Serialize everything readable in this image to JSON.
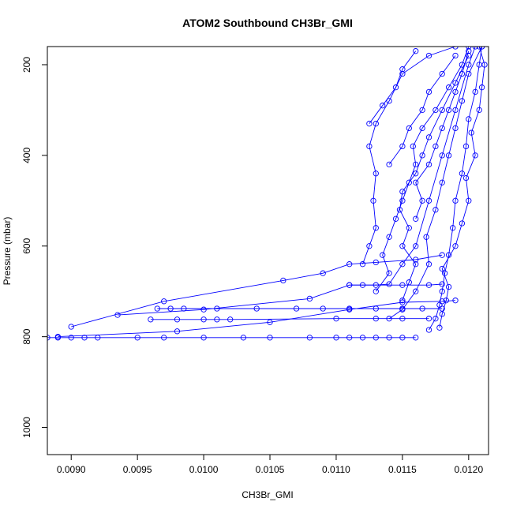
{
  "chart_data": {
    "type": "scatter",
    "title": "ATOM2 Southbound CH3Br_GMI",
    "xlabel": "CH3Br_GMI",
    "ylabel": "Pressure (mbar)",
    "xlim": [
      0.00882,
      0.01215
    ],
    "ylim": [
      1060,
      160
    ],
    "y_reversed": true,
    "x_ticks": [
      "0.0090",
      "0.0095",
      "0.0100",
      "0.0105",
      "0.0110",
      "0.0115",
      "0.0120"
    ],
    "y_ticks": [
      "200",
      "400",
      "600",
      "800",
      "1000"
    ],
    "x_tick_values": [
      0.009,
      0.0095,
      0.01,
      0.0105,
      0.011,
      0.0115,
      0.012
    ],
    "y_tick_values": [
      200,
      400,
      600,
      800,
      1000
    ],
    "grid": false,
    "marker": "open-circle",
    "color": "#0000ff",
    "series": [
      {
        "points": [
          [
            0.00882,
            802
          ],
          [
            0.0089,
            802
          ],
          [
            0.009,
            802
          ],
          [
            0.0091,
            802
          ],
          [
            0.0092,
            802
          ],
          [
            0.0095,
            802
          ],
          [
            0.0097,
            802
          ],
          [
            0.01,
            802
          ],
          [
            0.0103,
            802
          ],
          [
            0.0105,
            802
          ],
          [
            0.0108,
            802
          ],
          [
            0.011,
            802
          ],
          [
            0.0111,
            802
          ],
          [
            0.0112,
            802
          ],
          [
            0.0113,
            802
          ],
          [
            0.0114,
            802
          ],
          [
            0.0115,
            802
          ],
          [
            0.0116,
            802
          ]
        ]
      },
      {
        "points": [
          [
            0.00965,
            738
          ],
          [
            0.00975,
            738
          ],
          [
            0.00985,
            738
          ],
          [
            0.0101,
            738
          ],
          [
            0.0104,
            738
          ],
          [
            0.0107,
            738
          ],
          [
            0.0109,
            738
          ],
          [
            0.0111,
            738
          ],
          [
            0.0113,
            738
          ],
          [
            0.0115,
            738
          ],
          [
            0.01165,
            738
          ],
          [
            0.0118,
            738
          ]
        ]
      },
      {
        "points": [
          [
            0.0096,
            762
          ],
          [
            0.0098,
            762
          ],
          [
            0.01,
            762
          ],
          [
            0.0101,
            762
          ],
          [
            0.0102,
            762
          ],
          [
            0.011,
            760
          ],
          [
            0.0113,
            760
          ],
          [
            0.0115,
            760
          ],
          [
            0.0117,
            760
          ]
        ]
      },
      {
        "points": [
          [
            0.00935,
            752
          ],
          [
            0.01,
            740
          ],
          [
            0.0108,
            716
          ],
          [
            0.0111,
            686
          ],
          [
            0.0115,
            686
          ],
          [
            0.0117,
            686
          ],
          [
            0.0118,
            684
          ]
        ]
      },
      {
        "points": [
          [
            0.009,
            778
          ],
          [
            0.0097,
            722
          ],
          [
            0.0106,
            676
          ],
          [
            0.0109,
            660
          ],
          [
            0.0111,
            640
          ],
          [
            0.0113,
            636
          ],
          [
            0.0116,
            630
          ],
          [
            0.0118,
            620
          ]
        ]
      },
      {
        "points": [
          [
            0.0089,
            800
          ],
          [
            0.0098,
            788
          ],
          [
            0.0105,
            768
          ],
          [
            0.0111,
            740
          ],
          [
            0.0115,
            724
          ],
          [
            0.0118,
            722
          ],
          [
            0.0119,
            720
          ]
        ]
      },
      {
        "points": [
          [
            0.0111,
            686
          ],
          [
            0.0112,
            686
          ],
          [
            0.0113,
            686
          ],
          [
            0.0114,
            684
          ],
          [
            0.0115,
            640
          ],
          [
            0.0116,
            600
          ],
          [
            0.0117,
            500
          ],
          [
            0.0118,
            400
          ],
          [
            0.0119,
            300
          ],
          [
            0.012,
            200
          ],
          [
            0.01205,
            160
          ]
        ]
      },
      {
        "points": [
          [
            0.0112,
            640
          ],
          [
            0.01125,
            600
          ],
          [
            0.0113,
            560
          ],
          [
            0.01128,
            500
          ],
          [
            0.0113,
            440
          ],
          [
            0.01125,
            380
          ],
          [
            0.0113,
            330
          ],
          [
            0.0114,
            280
          ],
          [
            0.0115,
            220
          ],
          [
            0.0117,
            180
          ],
          [
            0.0119,
            160
          ]
        ]
      },
      {
        "points": [
          [
            0.0114,
            760
          ],
          [
            0.0115,
            740
          ],
          [
            0.0116,
            700
          ],
          [
            0.0117,
            640
          ],
          [
            0.01168,
            580
          ],
          [
            0.01175,
            520
          ],
          [
            0.0118,
            460
          ],
          [
            0.01185,
            400
          ],
          [
            0.0119,
            340
          ],
          [
            0.01195,
            280
          ],
          [
            0.012,
            220
          ],
          [
            0.0121,
            160
          ]
        ]
      },
      {
        "points": [
          [
            0.0117,
            785
          ],
          [
            0.01175,
            760
          ],
          [
            0.01178,
            730
          ],
          [
            0.0118,
            700
          ],
          [
            0.01182,
            660
          ],
          [
            0.01185,
            620
          ],
          [
            0.01188,
            560
          ],
          [
            0.0119,
            500
          ],
          [
            0.01195,
            440
          ],
          [
            0.01198,
            380
          ],
          [
            0.012,
            320
          ],
          [
            0.01205,
            260
          ],
          [
            0.01208,
            200
          ],
          [
            0.0121,
            160
          ]
        ]
      },
      {
        "points": [
          [
            0.0115,
            720
          ],
          [
            0.01155,
            680
          ],
          [
            0.0116,
            640
          ],
          [
            0.0115,
            600
          ],
          [
            0.01155,
            560
          ],
          [
            0.01148,
            520
          ],
          [
            0.0115,
            480
          ],
          [
            0.0116,
            440
          ],
          [
            0.01165,
            400
          ],
          [
            0.0117,
            360
          ],
          [
            0.0118,
            300
          ],
          [
            0.0119,
            240
          ],
          [
            0.012,
            180
          ]
        ]
      },
      {
        "points": [
          [
            0.0113,
            700
          ],
          [
            0.0114,
            660
          ],
          [
            0.01135,
            620
          ],
          [
            0.0114,
            580
          ],
          [
            0.01145,
            540
          ],
          [
            0.0115,
            500
          ],
          [
            0.01155,
            460
          ],
          [
            0.0116,
            420
          ],
          [
            0.01158,
            380
          ],
          [
            0.01165,
            340
          ],
          [
            0.01175,
            300
          ],
          [
            0.01185,
            250
          ],
          [
            0.01195,
            200
          ],
          [
            0.012,
            160
          ]
        ]
      },
      {
        "points": [
          [
            0.01178,
            780
          ],
          [
            0.0118,
            750
          ],
          [
            0.01183,
            720
          ],
          [
            0.01185,
            690
          ],
          [
            0.0118,
            650
          ],
          [
            0.0119,
            600
          ],
          [
            0.01195,
            550
          ],
          [
            0.012,
            500
          ],
          [
            0.01198,
            450
          ],
          [
            0.01205,
            400
          ],
          [
            0.01202,
            350
          ],
          [
            0.01208,
            300
          ],
          [
            0.0121,
            250
          ],
          [
            0.01212,
            200
          ],
          [
            0.01208,
            160
          ]
        ]
      },
      {
        "points": [
          [
            0.0116,
            540
          ],
          [
            0.01165,
            500
          ],
          [
            0.0116,
            460
          ],
          [
            0.0117,
            420
          ],
          [
            0.01175,
            380
          ],
          [
            0.0118,
            340
          ],
          [
            0.01185,
            300
          ],
          [
            0.0119,
            260
          ],
          [
            0.01195,
            220
          ],
          [
            0.012,
            170
          ]
        ]
      },
      {
        "points": [
          [
            0.01125,
            330
          ],
          [
            0.01135,
            290
          ],
          [
            0.01145,
            250
          ],
          [
            0.0115,
            210
          ],
          [
            0.0116,
            170
          ]
        ]
      },
      {
        "points": [
          [
            0.0114,
            420
          ],
          [
            0.0115,
            380
          ],
          [
            0.01155,
            340
          ],
          [
            0.01165,
            300
          ],
          [
            0.0117,
            260
          ],
          [
            0.0118,
            220
          ],
          [
            0.0119,
            180
          ]
        ]
      }
    ]
  }
}
